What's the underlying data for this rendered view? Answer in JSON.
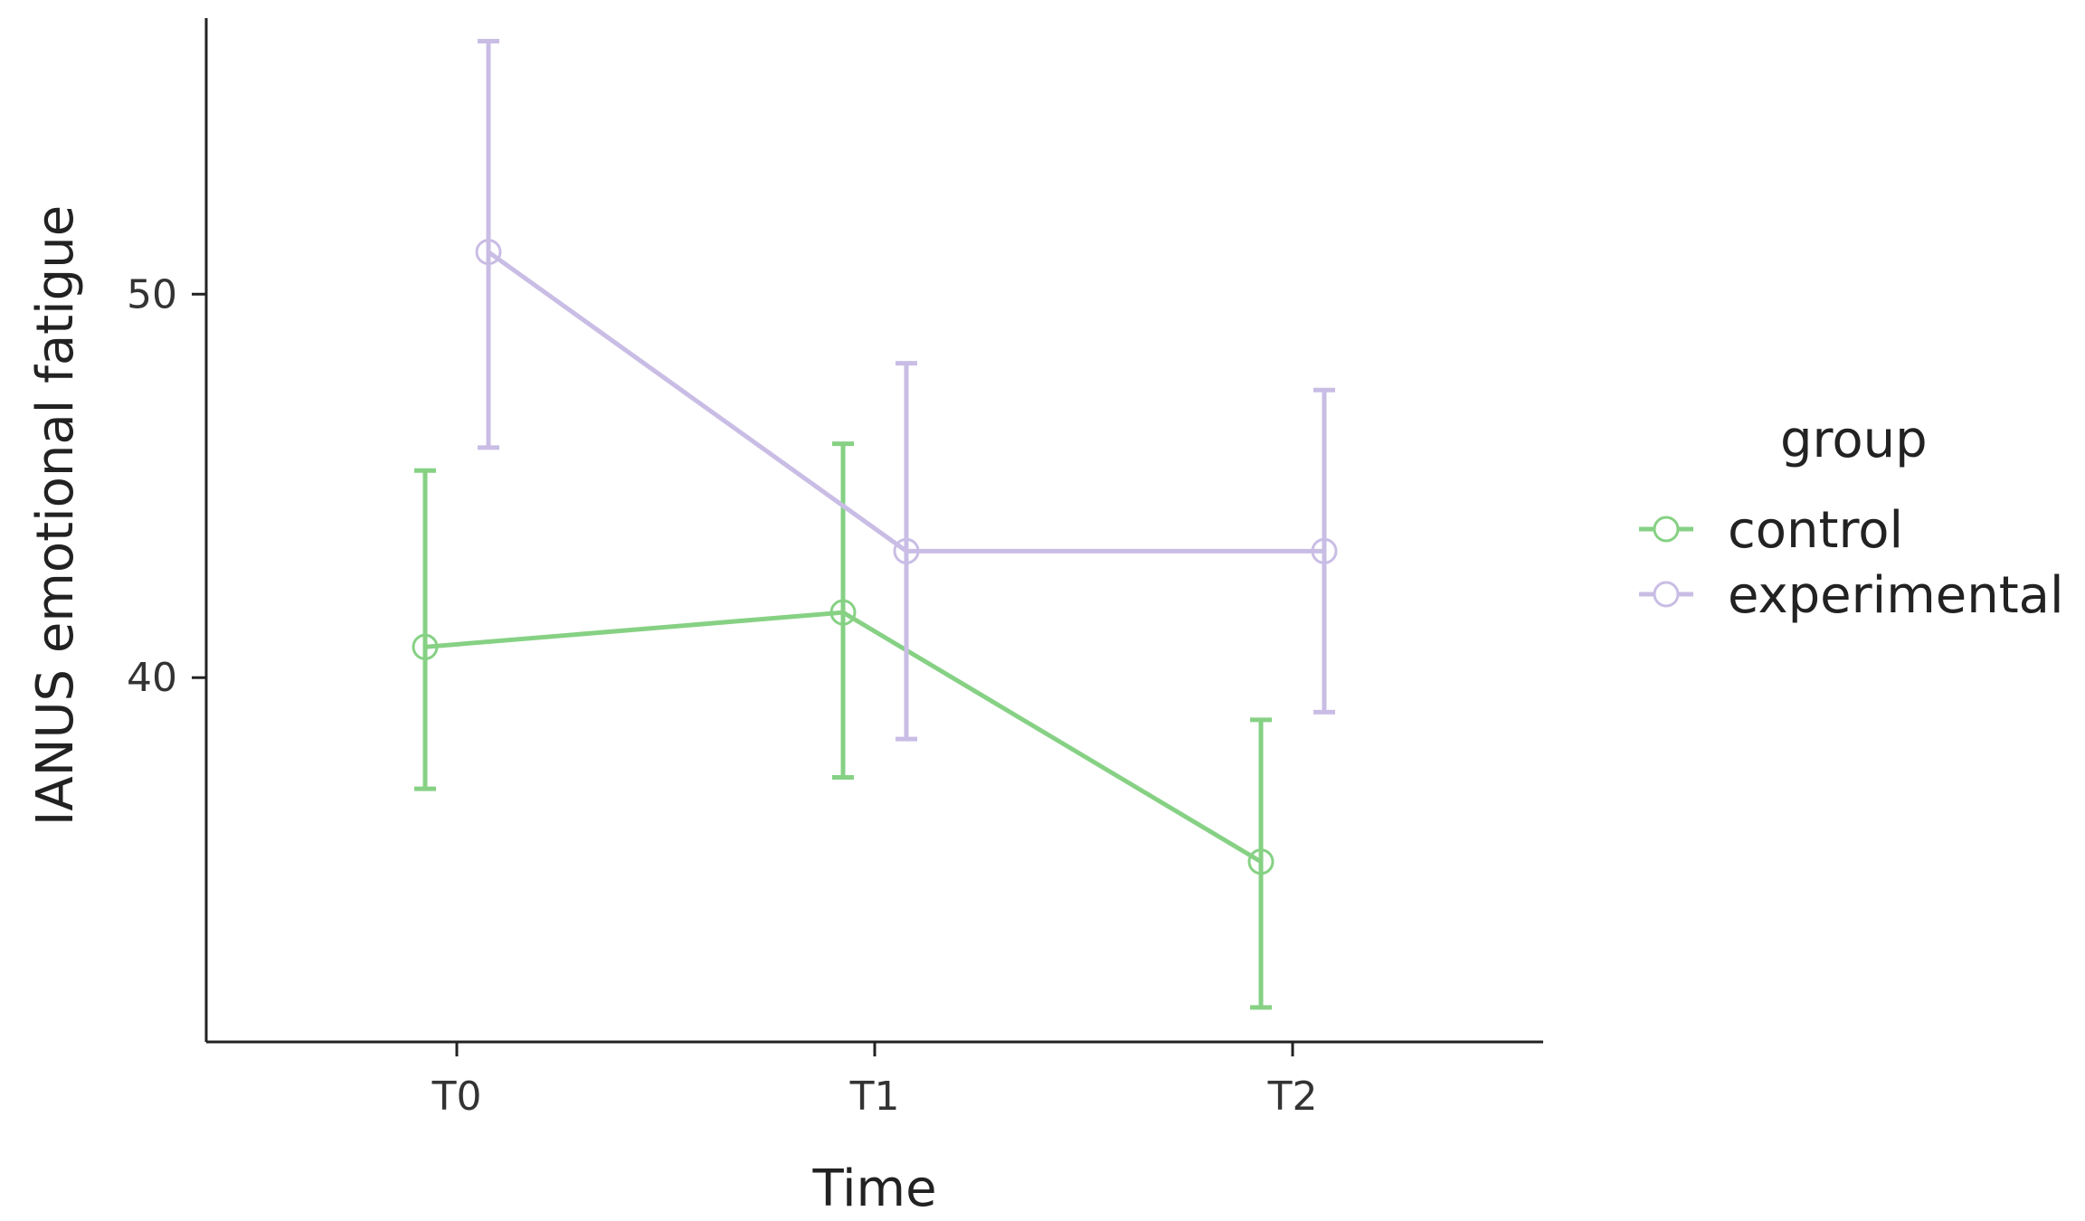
{
  "chart_data": {
    "type": "line",
    "categories": [
      "T0",
      "T1",
      "T2"
    ],
    "xlabel": "Time",
    "ylabel": "IANUS emotional fatigue",
    "ylim": [
      30.5,
      57.2
    ],
    "yticks": [
      40,
      50
    ],
    "legend": {
      "title": "group",
      "position": "right"
    },
    "series": [
      {
        "name": "control",
        "color": "#86d184",
        "values": [
          40.8,
          41.7,
          35.2
        ],
        "lower": [
          37.1,
          37.4,
          31.4
        ],
        "upper": [
          45.4,
          46.1,
          38.9
        ]
      },
      {
        "name": "experimental",
        "color": "#c9bde5",
        "values": [
          51.1,
          43.3,
          43.3
        ],
        "lower": [
          46.0,
          38.4,
          39.1
        ],
        "upper": [
          56.6,
          48.2,
          47.5
        ]
      }
    ]
  }
}
